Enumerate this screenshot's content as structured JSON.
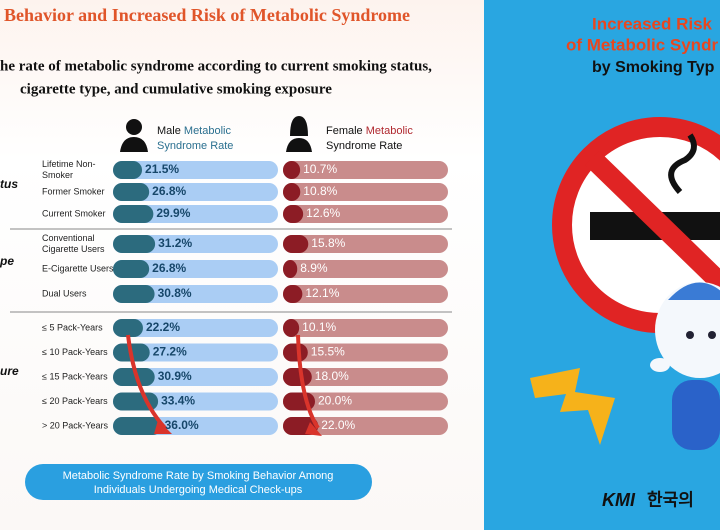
{
  "header": {
    "title": "Behavior and Increased Risk of Metabolic Syndrome",
    "subtitle": [
      "he rate of metabolic syndrome according to current smoking status,",
      "cigarette type, and cumulative smoking exposure"
    ]
  },
  "columns": {
    "male": {
      "prefix": "Male",
      "highlight": "Metabolic",
      "suffix": "Syndrome Rate"
    },
    "female": {
      "prefix": "Female",
      "highlight": "Metabolic",
      "suffix": "Syndrome Rate"
    }
  },
  "groups": [
    {
      "label": "tus",
      "rows": [
        {
          "label": [
            "Lifetime Non-",
            "Smoker"
          ],
          "male": 21.5,
          "male_label": "21.5%",
          "female": 10.7,
          "female_label": "10.7%"
        },
        {
          "label": [
            "Former Smoker"
          ],
          "male": 26.8,
          "male_label": "26.8%",
          "female": 10.8,
          "female_label": "10.8%"
        },
        {
          "label": [
            "Current Smoker"
          ],
          "male": 29.9,
          "male_label": "29.9%",
          "female": 12.6,
          "female_label": "12.6%"
        }
      ]
    },
    {
      "label": "pe",
      "rows": [
        {
          "label": [
            "Conventional",
            "Cigarette Users"
          ],
          "male": 31.2,
          "male_label": "31.2%",
          "female": 15.8,
          "female_label": "15.8%"
        },
        {
          "label": [
            "E-Cigarette Users"
          ],
          "male": 26.8,
          "male_label": "26.8%",
          "female": 8.9,
          "female_label": "8.9%"
        },
        {
          "label": [
            "Dual Users"
          ],
          "male": 30.8,
          "male_label": "30.8%",
          "female": 12.1,
          "female_label": "12.1%"
        }
      ]
    },
    {
      "label": "ure",
      "rows": [
        {
          "label": [
            "≤ 5 Pack-Years"
          ],
          "male": 22.2,
          "male_label": "22.2%",
          "female": 10.1,
          "female_label": "10.1%"
        },
        {
          "label": [
            "≤ 10 Pack-Years"
          ],
          "male": 27.2,
          "male_label": "27.2%",
          "female": 15.5,
          "female_label": "15.5%"
        },
        {
          "label": [
            "≤ 15 Pack-Years"
          ],
          "male": 30.9,
          "male_label": "30.9%",
          "female": 18,
          "female_label": "18.0%"
        },
        {
          "label": [
            "≤ 20 Pack-Years"
          ],
          "male": 33.4,
          "male_label": "33.4%",
          "female": 20,
          "female_label": "20.0%"
        },
        {
          "label": [
            "> 20 Pack-Years"
          ],
          "male": 36,
          "male_label": "36.0%",
          "female": 22,
          "female_label": "22.0%"
        }
      ]
    }
  ],
  "footer": [
    "Metabolic Syndrome Rate by Smoking Behavior Among",
    "Individuals Undergoing Medical Check-ups"
  ],
  "panel": {
    "title": [
      "Increased Risk",
      "of Metabolic Syndr"
    ],
    "subtitle": "by Smoking Typ",
    "logo": "KMI",
    "logo_text": "한국의"
  }
}
